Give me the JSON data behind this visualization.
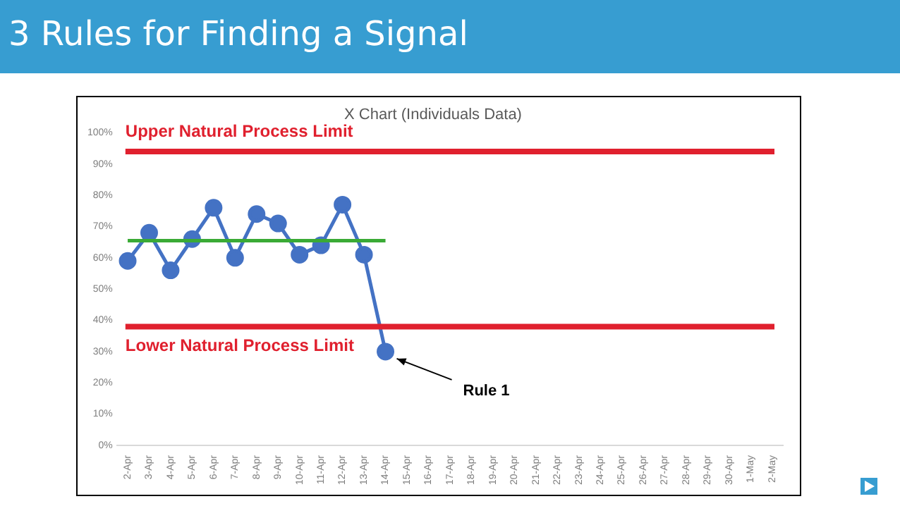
{
  "chart_data": {
    "type": "line",
    "title": "3 Rules for Finding a Signal",
    "subtitle": "X Chart (Individuals Data)",
    "categories": [
      "2-Apr",
      "3-Apr",
      "4-Apr",
      "5-Apr",
      "6-Apr",
      "7-Apr",
      "8-Apr",
      "9-Apr",
      "10-Apr",
      "11-Apr",
      "12-Apr",
      "13-Apr",
      "14-Apr",
      "15-Apr",
      "16-Apr",
      "17-Apr",
      "18-Apr",
      "19-Apr",
      "20-Apr",
      "21-Apr",
      "22-Apr",
      "23-Apr",
      "24-Apr",
      "25-Apr",
      "26-Apr",
      "27-Apr",
      "28-Apr",
      "29-Apr",
      "30-Apr",
      "1-May",
      "2-May"
    ],
    "series": [
      {
        "color": "#4472c4",
        "marker": "circle",
        "values": [
          59,
          68,
          56,
          66,
          76,
          60,
          74,
          71,
          61,
          64,
          77,
          61,
          30,
          null,
          null,
          null,
          null,
          null,
          null,
          null,
          null,
          null,
          null,
          null,
          null,
          null,
          null,
          null,
          null,
          null,
          null
        ]
      },
      {
        "color": "#3aaa35",
        "marker": "none",
        "values": [
          65.5,
          65.5,
          65.5,
          65.5,
          65.5,
          65.5,
          65.5,
          65.5,
          65.5,
          65.5,
          65.5,
          65.5,
          65.5,
          null,
          null,
          null,
          null,
          null,
          null,
          null,
          null,
          null,
          null,
          null,
          null,
          null,
          null,
          null,
          null,
          null,
          null
        ]
      }
    ],
    "ylim": [
      0,
      100
    ],
    "yticks": [
      {
        "value": 0,
        "label": "0%"
      },
      {
        "value": 10,
        "label": "10%"
      },
      {
        "value": 20,
        "label": "20%"
      },
      {
        "value": 30,
        "label": "30%"
      },
      {
        "value": 40,
        "label": "40%"
      },
      {
        "value": 50,
        "label": "50%"
      },
      {
        "value": 60,
        "label": "60%"
      },
      {
        "value": 70,
        "label": "70%"
      },
      {
        "value": 80,
        "label": "80%"
      },
      {
        "value": 90,
        "label": "90%"
      },
      {
        "value": 100,
        "label": "100%"
      }
    ],
    "ref_lines": [
      {
        "axis": "y",
        "value": 94,
        "label": "Upper Natural Process Limit",
        "color": "#e0202e"
      },
      {
        "axis": "y",
        "value": 38,
        "label": "Lower Natural Process Limit",
        "color": "#e0202e"
      }
    ],
    "annotations": [
      {
        "text": "Rule 1",
        "x": "14-Apr",
        "y": 30
      }
    ],
    "grid": false,
    "legend": false
  }
}
